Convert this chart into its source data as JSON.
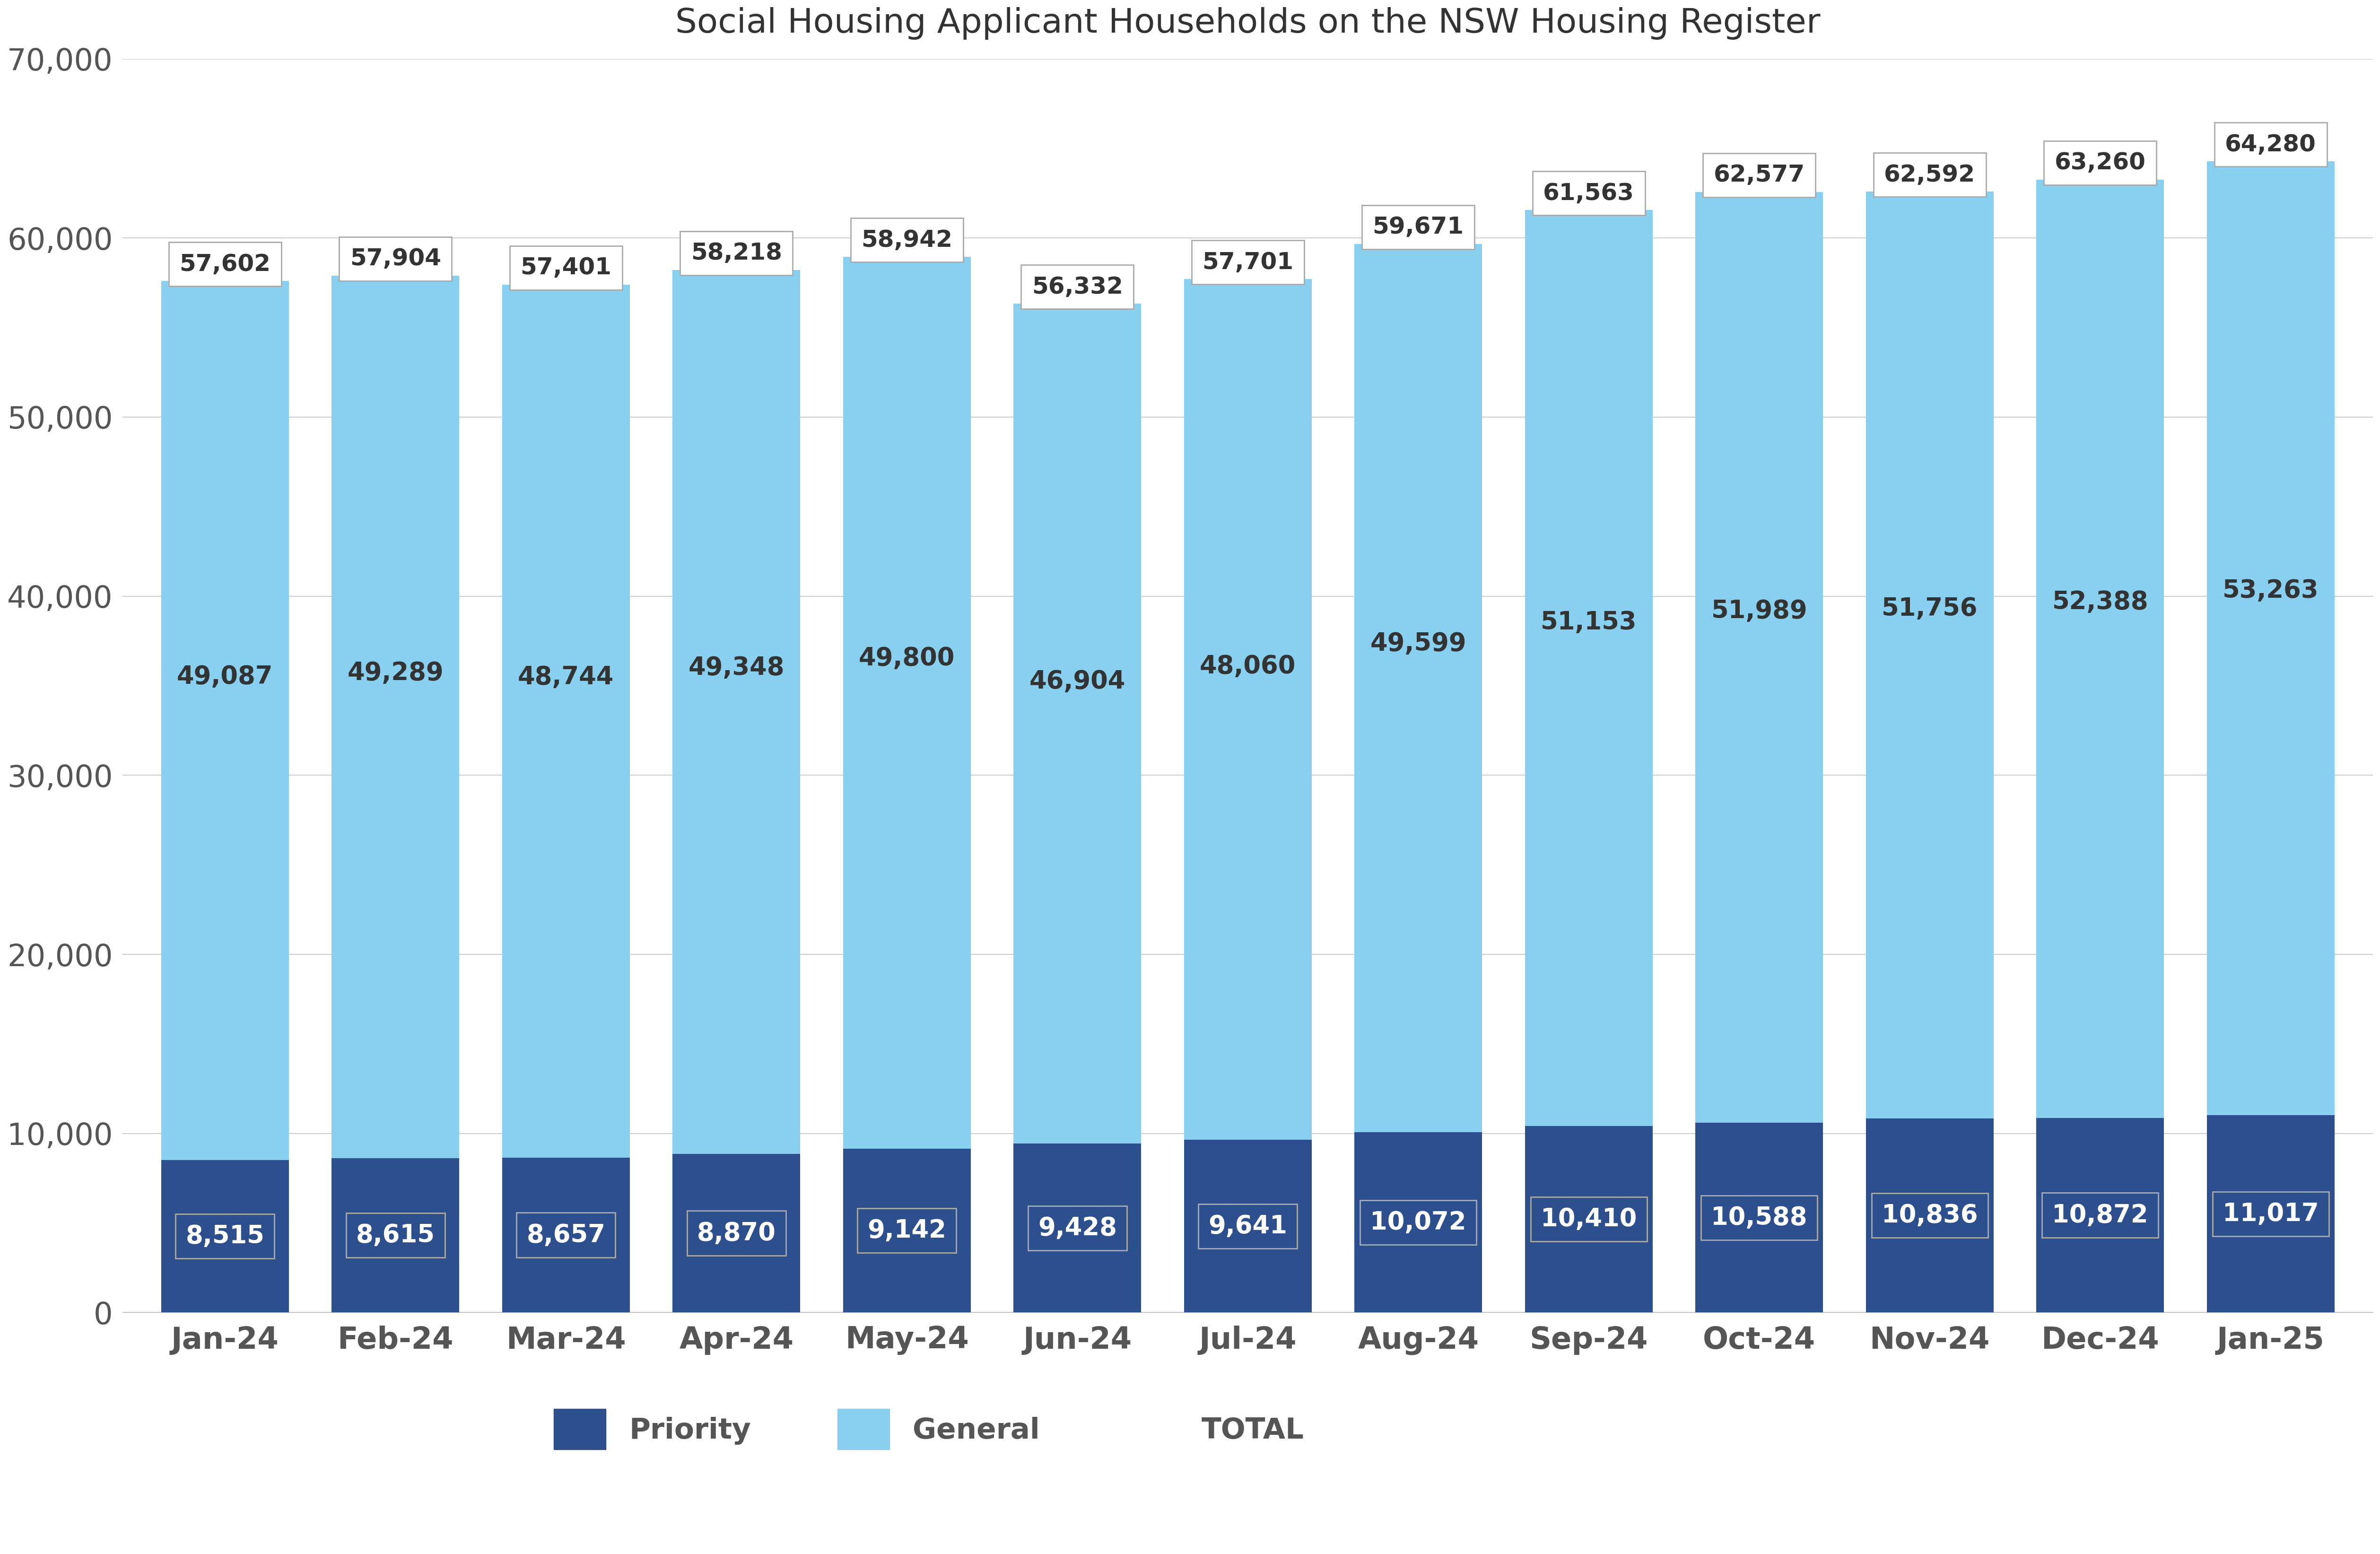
{
  "title": "Social Housing Applicant Households on the NSW Housing Register",
  "categories": [
    "Jan-24",
    "Feb-24",
    "Mar-24",
    "Apr-24",
    "May-24",
    "Jun-24",
    "Jul-24",
    "Aug-24",
    "Sep-24",
    "Oct-24",
    "Nov-24",
    "Dec-24",
    "Jan-25"
  ],
  "priority": [
    8515,
    8615,
    8657,
    8870,
    9142,
    9428,
    9641,
    10072,
    10410,
    10588,
    10836,
    10872,
    11017
  ],
  "general": [
    49087,
    49289,
    48744,
    49348,
    49800,
    46904,
    48060,
    49599,
    51153,
    51989,
    51756,
    52388,
    53263
  ],
  "totals": [
    57602,
    57904,
    57401,
    58218,
    58942,
    56332,
    57701,
    59671,
    61563,
    62577,
    62592,
    63260,
    64280
  ],
  "priority_color": "#2d4f8e",
  "general_color": "#89d0f0",
  "title_fontsize": 52,
  "tick_fontsize": 46,
  "legend_fontsize": 44,
  "bar_label_fontsize": 38,
  "total_label_fontsize": 36,
  "ylim": [
    0,
    70000
  ],
  "yticks": [
    0,
    10000,
    20000,
    30000,
    40000,
    50000,
    60000,
    70000
  ],
  "background_color": "#ffffff",
  "grid_color": "#cccccc",
  "legend_labels": [
    "Priority",
    "General",
    "TOTAL"
  ],
  "bar_width": 0.75
}
